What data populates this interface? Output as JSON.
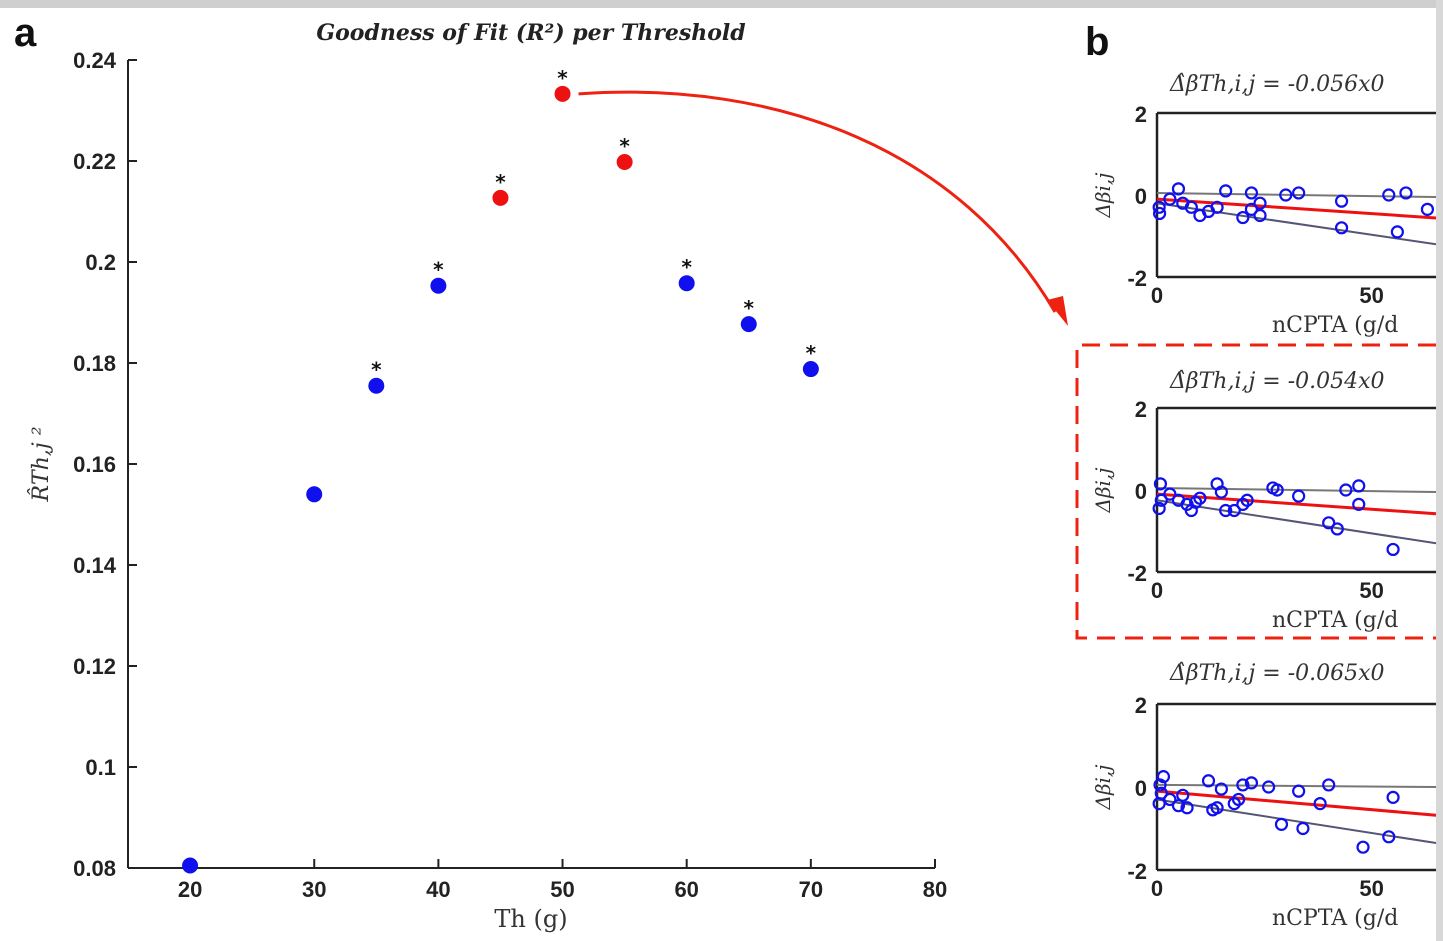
{
  "panel_a_label": "a",
  "panel_b_label": "b",
  "chart_data": [
    {
      "type": "scatter",
      "title": "Goodness of Fit (R²) per Threshold",
      "xlabel": "Th (g)",
      "ylabel": "R̂Th,j ²",
      "xlim": [
        15,
        80
      ],
      "ylim": [
        0.08,
        0.24
      ],
      "xticks": [
        20,
        30,
        40,
        50,
        60,
        70,
        80
      ],
      "yticks": [
        0.08,
        0.1,
        0.12,
        0.14,
        0.16,
        0.18,
        0.2,
        0.22,
        0.24
      ],
      "ytick_labels": [
        "0.08",
        "0.1",
        "0.12",
        "0.14",
        "0.16",
        "0.18",
        "0.2",
        "0.22",
        "0.24"
      ],
      "grid": false,
      "points": [
        {
          "x": 20,
          "y": 0.0805,
          "color": "#1010ee",
          "marker": ""
        },
        {
          "x": 30,
          "y": 0.154,
          "color": "#1010ee",
          "marker": ""
        },
        {
          "x": 35,
          "y": 0.1755,
          "color": "#1010ee",
          "marker": "*"
        },
        {
          "x": 40,
          "y": 0.1953,
          "color": "#1010ee",
          "marker": "*"
        },
        {
          "x": 45,
          "y": 0.2127,
          "color": "#ee1111",
          "marker": "*"
        },
        {
          "x": 50,
          "y": 0.2333,
          "color": "#ee1111",
          "marker": "*"
        },
        {
          "x": 55,
          "y": 0.2198,
          "color": "#ee1111",
          "marker": "*"
        },
        {
          "x": 60,
          "y": 0.1958,
          "color": "#1010ee",
          "marker": "*"
        },
        {
          "x": 65,
          "y": 0.1877,
          "color": "#1010ee",
          "marker": "*"
        },
        {
          "x": 70,
          "y": 0.1788,
          "color": "#1010ee",
          "marker": "*"
        }
      ]
    },
    {
      "type": "scatter",
      "title": "Δ̂βTh,i,j = -0.056x0",
      "xlabel": "nCPTA (g/d",
      "ylabel": "Δβi,j",
      "xlim": [
        0,
        65
      ],
      "ylim": [
        -2,
        2
      ],
      "xticks": [
        0,
        50
      ],
      "yticks": [
        -2,
        0,
        2
      ],
      "lines": [
        {
          "color": "#ee1111",
          "y0": -0.1,
          "y1": -0.56
        },
        {
          "color": "#777777",
          "y0": 0.05,
          "y1": -0.05
        },
        {
          "color": "#555577",
          "y0": -0.2,
          "y1": -1.2
        }
      ],
      "points": [
        [
          0.5,
          -0.3
        ],
        [
          0.6,
          -0.45
        ],
        [
          3,
          -0.1
        ],
        [
          5,
          0.15
        ],
        [
          6,
          -0.2
        ],
        [
          8,
          -0.3
        ],
        [
          10,
          -0.5
        ],
        [
          12,
          -0.4
        ],
        [
          14,
          -0.3
        ],
        [
          16,
          0.1
        ],
        [
          20,
          -0.55
        ],
        [
          22,
          -0.35
        ],
        [
          22,
          0.05
        ],
        [
          24,
          -0.2
        ],
        [
          24,
          -0.5
        ],
        [
          30,
          0
        ],
        [
          33,
          0.05
        ],
        [
          43,
          -0.15
        ],
        [
          43,
          -0.8
        ],
        [
          54,
          0
        ],
        [
          56,
          -0.9
        ],
        [
          58,
          0.05
        ],
        [
          63,
          -0.35
        ]
      ]
    },
    {
      "type": "scatter",
      "title": "Δ̂βTh,i,j = -0.054x0",
      "xlabel": "nCPTA (g/d",
      "ylabel": "Δβi,j",
      "xlim": [
        0,
        65
      ],
      "ylim": [
        -2,
        2
      ],
      "xticks": [
        0,
        50
      ],
      "yticks": [
        -2,
        0,
        2
      ],
      "lines": [
        {
          "color": "#ee1111",
          "y0": -0.1,
          "y1": -0.58
        },
        {
          "color": "#777777",
          "y0": 0.05,
          "y1": -0.05
        },
        {
          "color": "#555577",
          "y0": -0.25,
          "y1": -1.3
        }
      ],
      "points": [
        [
          0.5,
          -0.45
        ],
        [
          0.8,
          0.15
        ],
        [
          1,
          -0.25
        ],
        [
          3,
          -0.1
        ],
        [
          5,
          -0.25
        ],
        [
          7,
          -0.35
        ],
        [
          8,
          -0.5
        ],
        [
          9,
          -0.3
        ],
        [
          10,
          -0.2
        ],
        [
          14,
          0.15
        ],
        [
          15,
          -0.05
        ],
        [
          16,
          -0.5
        ],
        [
          18,
          -0.5
        ],
        [
          20,
          -0.35
        ],
        [
          21,
          -0.25
        ],
        [
          27,
          0.05
        ],
        [
          28,
          0
        ],
        [
          33,
          -0.15
        ],
        [
          40,
          -0.8
        ],
        [
          42,
          -0.95
        ],
        [
          44,
          0
        ],
        [
          47,
          0.1
        ],
        [
          47,
          -0.35
        ],
        [
          55,
          -1.45
        ]
      ]
    },
    {
      "type": "scatter",
      "title": "Δ̂βTh,i,j = -0.065x0",
      "xlabel": "nCPTA (g/d",
      "ylabel": "Δβi,j",
      "xlim": [
        0,
        65
      ],
      "ylim": [
        -2,
        2
      ],
      "xticks": [
        0,
        50
      ],
      "yticks": [
        -2,
        0,
        2
      ],
      "lines": [
        {
          "color": "#ee1111",
          "y0": -0.1,
          "y1": -0.68
        },
        {
          "color": "#777777",
          "y0": 0.05,
          "y1": 0.0
        },
        {
          "color": "#555577",
          "y0": -0.3,
          "y1": -1.35
        }
      ],
      "points": [
        [
          0.5,
          -0.4
        ],
        [
          0.7,
          0.05
        ],
        [
          1,
          -0.15
        ],
        [
          1.5,
          0.25
        ],
        [
          3,
          -0.3
        ],
        [
          5,
          -0.45
        ],
        [
          6,
          -0.2
        ],
        [
          7,
          -0.5
        ],
        [
          12,
          0.15
        ],
        [
          13,
          -0.55
        ],
        [
          14,
          -0.5
        ],
        [
          15,
          -0.05
        ],
        [
          18,
          -0.4
        ],
        [
          19,
          -0.3
        ],
        [
          20,
          0.05
        ],
        [
          22,
          0.1
        ],
        [
          26,
          0
        ],
        [
          29,
          -0.9
        ],
        [
          33,
          -0.1
        ],
        [
          34,
          -1.0
        ],
        [
          38,
          -0.4
        ],
        [
          40,
          0.05
        ],
        [
          48,
          -1.45
        ],
        [
          54,
          -1.2
        ],
        [
          55,
          -0.25
        ]
      ]
    }
  ]
}
